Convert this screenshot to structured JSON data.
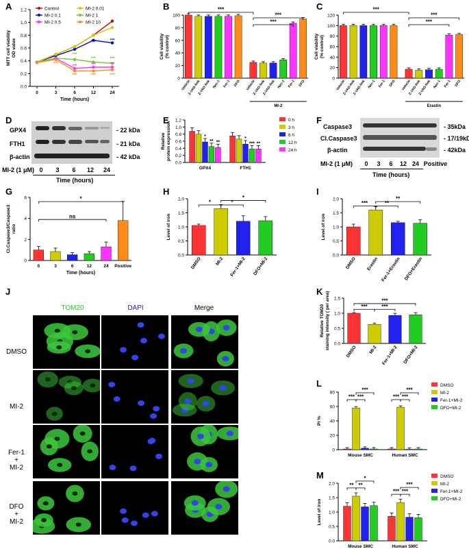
{
  "panel_labels": [
    "A",
    "B",
    "C",
    "D",
    "E",
    "F",
    "G",
    "H",
    "I",
    "J",
    "K",
    "L",
    "M"
  ],
  "colors": {
    "red": "#ff3333",
    "olive": "#cccc00",
    "blue": "#2222ee",
    "green": "#22cc22",
    "orange": "#ff8c1a",
    "magenta": "#ff33ff",
    "darkred": "#cc0000",
    "navy": "#0000aa",
    "cyan": "#33cc99",
    "lime": "#66cc33"
  },
  "chart_data": [
    {
      "id": "A",
      "type": "line",
      "ylabel": "MTT cell viability\nOD value",
      "xlabel": "Time (hours)",
      "x": [
        0,
        3,
        6,
        12,
        24
      ],
      "ylim": [
        0,
        1.2
      ],
      "yticks": [
        "0.0",
        "0.2",
        "0.4",
        "0.6",
        "0.8",
        "1.0",
        "1.2"
      ],
      "series": [
        {
          "name": "Control",
          "color": "#cc0000",
          "values": [
            0.38,
            0.5,
            0.62,
            0.8,
            1.02
          ]
        },
        {
          "name": "MI-2 0.1",
          "color": "#0000cc",
          "values": [
            0.38,
            0.48,
            0.58,
            0.72,
            0.68
          ]
        },
        {
          "name": "MI-2 0.5",
          "color": "#ff33ff",
          "values": [
            0.37,
            0.44,
            0.28,
            0.3,
            0.3
          ]
        },
        {
          "name": "MI-2 0.01",
          "color": "#cccc00",
          "values": [
            0.38,
            0.5,
            0.62,
            0.8,
            0.92
          ]
        },
        {
          "name": "MI-2 1",
          "color": "#66cc33",
          "values": [
            0.38,
            0.44,
            0.42,
            0.38,
            0.36
          ]
        },
        {
          "name": "MI-2 10",
          "color": "#ff8c1a",
          "values": [
            0.37,
            0.42,
            0.24,
            0.24,
            0.26
          ]
        }
      ]
    },
    {
      "id": "B",
      "type": "bar",
      "ylabel": "Cell viability\n(% control)",
      "ylim": [
        0,
        100
      ],
      "yticks": [
        "0",
        "20",
        "40",
        "60",
        "80",
        "100"
      ],
      "categories": [
        "Vehicle",
        "Z-VAD-fmk",
        "Z-VAD-fmk",
        "Nec-1",
        "Fer-1",
        "DFO",
        "Vehicle",
        "Z-VAD-fmk",
        "Z-VAD-fmk",
        "Nec-1",
        "Fer-1",
        "DFO"
      ],
      "values": [
        100,
        98,
        98,
        98,
        98,
        99,
        25,
        24,
        24,
        29,
        87,
        94
      ],
      "group_label": "MI-2",
      "sig": [
        "***",
        "***",
        "***"
      ]
    },
    {
      "id": "C",
      "type": "bar",
      "ylabel": "Cell viability\n(% control)",
      "ylim": [
        0,
        120
      ],
      "yticks": [
        "0",
        "20",
        "40",
        "60",
        "80",
        "100",
        "120"
      ],
      "categories": [
        "Vehicle",
        "Z-VAD-fmk",
        "Z-VAD-fmk",
        "Nec-1",
        "Fer-1",
        "DFO",
        "Vehicle",
        "Z-VAD-fmk",
        "Z-VAD-fmk",
        "Nec-1",
        "Fer-1",
        "DFO"
      ],
      "values": [
        100,
        100,
        100,
        100,
        100,
        100,
        17,
        15,
        16,
        17,
        82,
        83
      ],
      "group_label": "Erastin",
      "sig": [
        "***",
        "***",
        "***"
      ]
    },
    {
      "id": "E",
      "type": "bar",
      "ylabel": "Relative\nprotein expression",
      "ylim": [
        0,
        1.2
      ],
      "yticks": [
        "0.0",
        "0.2",
        "0.4",
        "0.6",
        "0.8",
        "1.0",
        "1.2"
      ],
      "categories": [
        "GPX4",
        "FTH1"
      ],
      "series": [
        {
          "name": "0 h",
          "color": "#ff3333",
          "values": [
            0.88,
            0.75
          ]
        },
        {
          "name": "3 h",
          "color": "#cccc00",
          "values": [
            0.8,
            0.66
          ]
        },
        {
          "name": "6 h",
          "color": "#2222ee",
          "values": [
            0.58,
            0.52
          ]
        },
        {
          "name": "12 h",
          "color": "#22cc22",
          "values": [
            0.45,
            0.38
          ]
        },
        {
          "name": "24 h",
          "color": "#ff33ff",
          "values": [
            0.42,
            0.38
          ]
        }
      ],
      "sig": [
        "*",
        "**",
        "**",
        "*",
        "***",
        "**"
      ]
    },
    {
      "id": "G",
      "type": "bar",
      "ylabel": "Cl.Caspase3/Caspase3\nratio",
      "xlabel": "Time (hours)",
      "ylim": [
        0,
        6
      ],
      "yticks": [
        "0",
        "2",
        "4",
        "6"
      ],
      "categories": [
        "0",
        "3",
        "6",
        "12",
        "24",
        "Positive"
      ],
      "values": [
        1.0,
        0.85,
        0.55,
        0.65,
        1.3,
        3.8
      ],
      "colors": [
        "#ff3333",
        "#cccc00",
        "#2222ee",
        "#22cc22",
        "#ff33ff",
        "#ff8c1a"
      ],
      "sig": [
        "*",
        "ns"
      ]
    },
    {
      "id": "H",
      "type": "bar",
      "ylabel": "Level of iron",
      "ylim": [
        0,
        2.0
      ],
      "yticks": [
        "0.0",
        "0.5",
        "1.0",
        "1.5",
        "2.0"
      ],
      "categories": [
        "DMSO",
        "MI-2",
        "Fer-1+MI-2",
        "DFO+MI-2"
      ],
      "values": [
        1.05,
        1.65,
        1.2,
        1.22
      ],
      "colors": [
        "#ff3333",
        "#cccc00",
        "#2222ee",
        "#22cc22"
      ],
      "sig": [
        "*",
        "*",
        "*"
      ]
    },
    {
      "id": "I",
      "type": "bar",
      "ylabel": "Level of iron",
      "ylim": [
        0,
        2.0
      ],
      "yticks": [
        "0.0",
        "0.5",
        "1.0",
        "1.5",
        "2.0"
      ],
      "categories": [
        "DMSO",
        "Erastin",
        "Fer-1+Erastin",
        "DFO+Erastin"
      ],
      "values": [
        1.0,
        1.6,
        1.15,
        1.13
      ],
      "colors": [
        "#ff3333",
        "#cccc00",
        "#2222ee",
        "#22cc22"
      ],
      "sig": [
        "***",
        "**",
        "**"
      ]
    },
    {
      "id": "K",
      "type": "bar",
      "ylabel": "Relative TOM20\nstaining intensity ( per area)",
      "ylim": [
        0,
        1.5
      ],
      "yticks": [
        "0.0",
        "0.5",
        "1.0",
        "1.5"
      ],
      "categories": [
        "DMSO",
        "MI-2",
        "Fer-1+MI-2",
        "DFO+MI-2"
      ],
      "values": [
        1.0,
        0.63,
        0.93,
        0.95
      ],
      "colors": [
        "#ff3333",
        "#cccc00",
        "#2222ee",
        "#22cc22"
      ],
      "sig": [
        "***",
        "***",
        "***"
      ]
    },
    {
      "id": "L",
      "type": "bar",
      "ylabel": "PI %",
      "ylim": [
        0,
        80
      ],
      "yticks": [
        "0",
        "20",
        "40",
        "60",
        "80"
      ],
      "categories": [
        "Mouse SMC",
        "Human SMC"
      ],
      "series": [
        {
          "name": "DMSO",
          "color": "#ff3333",
          "values": [
            1,
            1
          ]
        },
        {
          "name": "MI-2",
          "color": "#cccc00",
          "values": [
            58,
            59
          ]
        },
        {
          "name": "Fer-1+MI-2",
          "color": "#2222ee",
          "values": [
            2,
            0.5
          ]
        },
        {
          "name": "DFO+MI-2",
          "color": "#22cc22",
          "values": [
            1,
            1
          ]
        }
      ],
      "sig": [
        "***",
        "***",
        "***",
        "***",
        "***",
        "***"
      ]
    },
    {
      "id": "M",
      "type": "bar",
      "ylabel": "Level of iron",
      "ylim": [
        0,
        2.0
      ],
      "yticks": [
        "0.0",
        "0.5",
        "1.0",
        "1.5",
        "2.0"
      ],
      "categories": [
        "Mouse SMC",
        "Human SMC"
      ],
      "series": [
        {
          "name": "DMSO",
          "color": "#ff3333",
          "values": [
            1.2,
            0.85
          ]
        },
        {
          "name": "MI-2",
          "color": "#cccc00",
          "values": [
            1.55,
            1.33
          ]
        },
        {
          "name": "Fer-1+MI-2",
          "color": "#2222ee",
          "values": [
            1.18,
            0.82
          ]
        },
        {
          "name": "DFO+MI-2",
          "color": "#22cc22",
          "values": [
            1.22,
            0.8
          ]
        }
      ],
      "sig": [
        "**",
        "**",
        "*",
        "***",
        "***",
        "***"
      ]
    }
  ],
  "blot_D": {
    "rows": [
      {
        "label": "GPX4",
        "kda": "- 22 kDa"
      },
      {
        "label": "FTH1",
        "kda": "- 21 kDa"
      },
      {
        "label": "β-actin",
        "kda": "- 42 kDa"
      }
    ],
    "treatment": "MI-2 (1 μM)",
    "lanes": [
      "0",
      "3",
      "6",
      "12",
      "24"
    ],
    "xlabel": "Time (hours)"
  },
  "blot_F": {
    "rows": [
      {
        "label": "Caspase3",
        "kda": "- 35kDa"
      },
      {
        "label": "Cl.Caspase3",
        "kda": "- 17/19kDa"
      },
      {
        "label": "β-actin",
        "kda": "- 42kDa"
      }
    ],
    "treatment": "MI-2 (1 μM)",
    "lanes": [
      "0",
      "3",
      "6",
      "12",
      "24",
      "Positive"
    ],
    "xlabel": "Time (hours)"
  },
  "panel_J": {
    "columns": [
      "TOM20",
      "DAPI",
      "Merge"
    ],
    "rows": [
      "DMSO",
      "MI-2",
      "Fer-1\n+\nMI-2",
      "DFO\n+\nMI-2"
    ]
  }
}
